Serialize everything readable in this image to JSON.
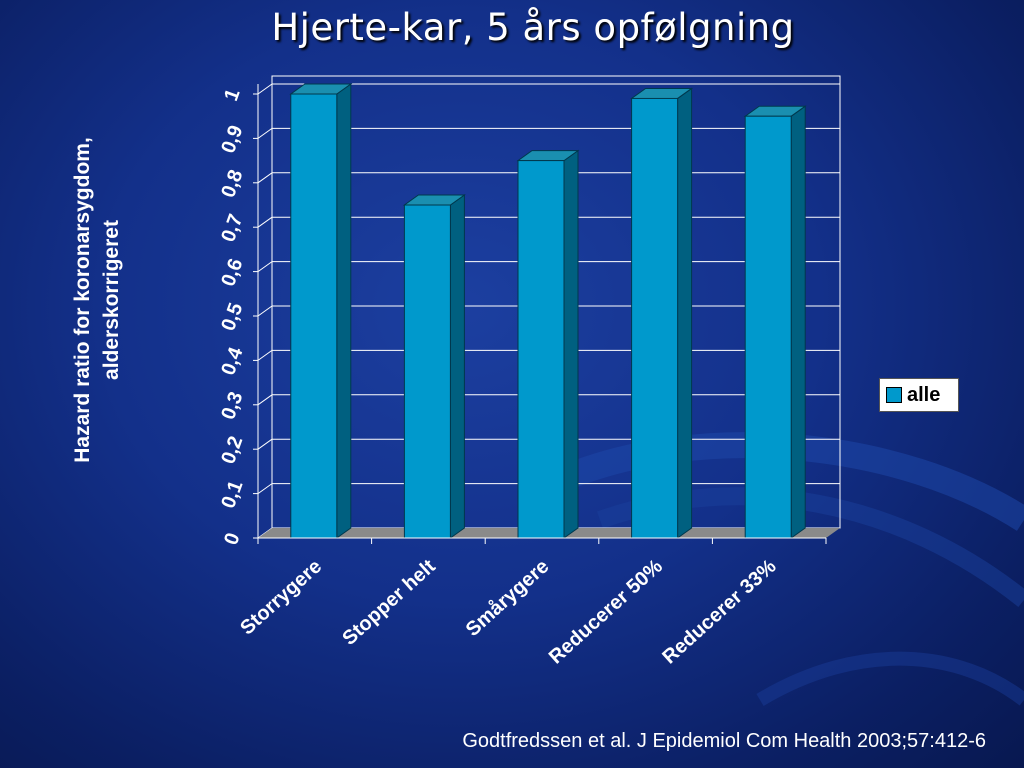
{
  "slide": {
    "title": "Hjerte-kar, 5 års opfølgning",
    "citation": "Godtfredssen et al. J Epidemiol Com Health 2003;57:412-6"
  },
  "colors": {
    "bar_front": "#0099cc",
    "bar_top": "#1a8fb0",
    "bar_side": "#006080",
    "floor": "#8a8a8a",
    "background": "#13308a"
  },
  "chart_data": {
    "type": "bar",
    "categories": [
      "Storrygere",
      "Stopper helt",
      "Smårygere",
      "Reducerer 50%",
      "Reducerer 33%"
    ],
    "series": [
      {
        "name": "alle",
        "values": [
          1.0,
          0.75,
          0.85,
          0.99,
          0.95
        ]
      }
    ],
    "ylabel_lines": [
      "Hazard ratio for koronarsygdom,",
      "alderskorrigeret"
    ],
    "yticks": [
      "0",
      "0,1",
      "0,2",
      "0,3",
      "0,4",
      "0,5",
      "0,6",
      "0,7",
      "0,8",
      "0,9",
      "1"
    ],
    "ylim": [
      0,
      1
    ],
    "grid": true,
    "legend_position": "right",
    "style": "3d-column"
  }
}
